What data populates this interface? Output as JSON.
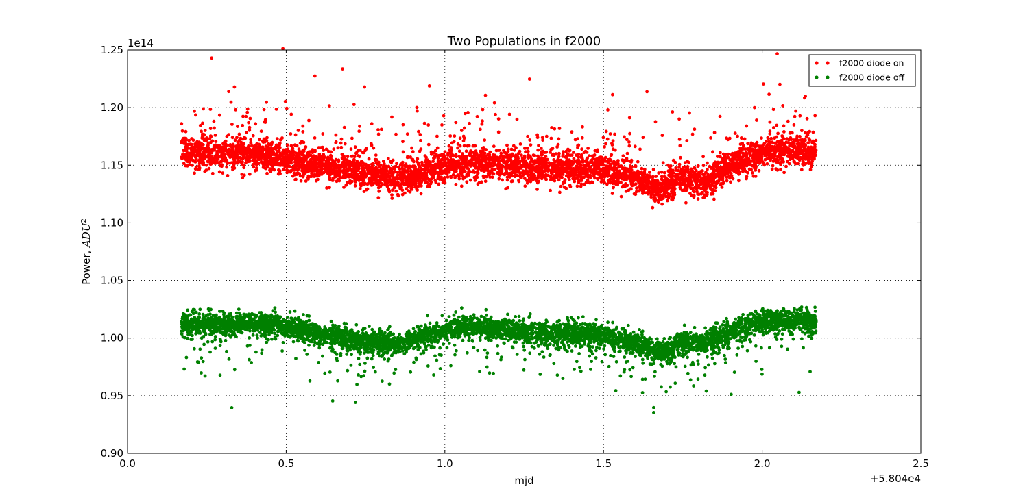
{
  "chart_data": {
    "type": "scatter",
    "title": "Two Populations in f2000",
    "xlabel": "mjd",
    "ylabel_prefix": "Power, ",
    "ylabel_math": "ADU",
    "ylabel_superscript": "2",
    "x_offset_label": "+5.804e4",
    "y_exponent_label": "1e14",
    "xlim": [
      0.0,
      2.5
    ],
    "ylim": [
      0.9,
      1.25
    ],
    "x_ticks": [
      "0.0",
      "0.5",
      "1.0",
      "1.5",
      "2.0",
      "2.5"
    ],
    "y_ticks": [
      "0.90",
      "0.95",
      "1.00",
      "1.05",
      "1.10",
      "1.15",
      "1.20",
      "1.25"
    ],
    "grid": true,
    "legend_position": "top-right",
    "series": [
      {
        "name": "f2000 diode on",
        "color": "#ff0000",
        "x_range": [
          0.17,
          2.17
        ],
        "trend_x": [
          0.17,
          0.3,
          0.45,
          0.6,
          0.75,
          0.85,
          0.95,
          1.05,
          1.2,
          1.35,
          1.5,
          1.6,
          1.68,
          1.75,
          1.82,
          1.92,
          2.0,
          2.1,
          2.17
        ],
        "trend_y": [
          1.162,
          1.16,
          1.158,
          1.15,
          1.143,
          1.138,
          1.145,
          1.152,
          1.15,
          1.147,
          1.146,
          1.138,
          1.128,
          1.138,
          1.135,
          1.152,
          1.16,
          1.163,
          1.162
        ],
        "spread": 0.012
      },
      {
        "name": "f2000 diode off",
        "color": "#008000",
        "x_range": [
          0.17,
          2.17
        ],
        "trend_x": [
          0.17,
          0.3,
          0.45,
          0.6,
          0.75,
          0.85,
          0.95,
          1.05,
          1.2,
          1.35,
          1.5,
          1.6,
          1.68,
          1.75,
          1.82,
          1.92,
          2.0,
          2.1,
          2.17
        ],
        "trend_y": [
          1.012,
          1.012,
          1.013,
          1.004,
          0.997,
          0.995,
          1.003,
          1.01,
          1.007,
          1.004,
          1.003,
          0.996,
          0.987,
          0.996,
          0.997,
          1.008,
          1.015,
          1.015,
          1.014
        ],
        "spread": 0.009
      }
    ]
  }
}
